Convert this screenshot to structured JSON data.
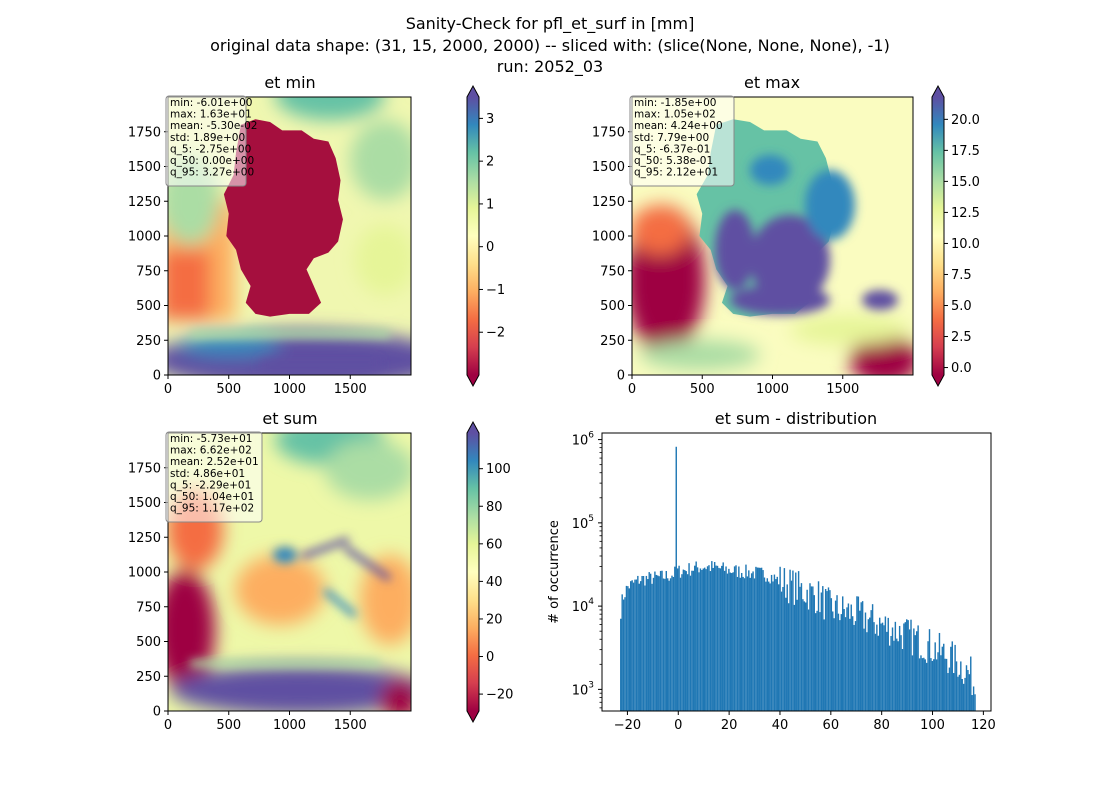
{
  "figure": {
    "title_lines": [
      "Sanity-Check for pfl_et_surf in [mm]",
      "original data shape: (31, 15, 2000, 2000) -- sliced with: (slice(None, None, None), -1)",
      "run: 2052_03"
    ]
  },
  "chart_data": [
    {
      "type": "heatmap",
      "title": "et min",
      "x_ticks": [
        "0",
        "500",
        "1000",
        "1500"
      ],
      "y_ticks": [
        "0",
        "250",
        "500",
        "750",
        "1000",
        "1250",
        "1500",
        "1750"
      ],
      "xlim": [
        0,
        2000
      ],
      "ylim": [
        0,
        2000
      ],
      "colormap": "Spectral",
      "colorbar": {
        "vmin": -3.0,
        "vmax": 3.5,
        "ticks": [
          "−2",
          "−1",
          "0",
          "1",
          "2",
          "3"
        ],
        "tick_values": [
          -2,
          -1,
          0,
          1,
          2,
          3
        ],
        "extend": "both"
      },
      "stats": [
        "min: -6.01e+00",
        "max: 1.63e+01",
        "mean: -5.30e-02",
        "std: 1.89e+00",
        "q_5: -2.75e+00",
        "q_50: 0.00e+00",
        "q_95: 3.27e+00"
      ]
    },
    {
      "type": "heatmap",
      "title": "et max",
      "x_ticks": [
        "0",
        "500",
        "1000",
        "1500"
      ],
      "y_ticks": [
        "0",
        "250",
        "500",
        "750",
        "1000",
        "1250",
        "1500",
        "1750"
      ],
      "xlim": [
        0,
        2000
      ],
      "ylim": [
        0,
        2000
      ],
      "colormap": "Spectral",
      "colorbar": {
        "vmin": -0.6,
        "vmax": 21.8,
        "ticks": [
          "0.0",
          "2.5",
          "5.0",
          "7.5",
          "10.0",
          "12.5",
          "15.0",
          "17.5",
          "20.0"
        ],
        "tick_values": [
          0,
          2.5,
          5,
          7.5,
          10,
          12.5,
          15,
          17.5,
          20
        ],
        "extend": "both"
      },
      "stats": [
        "min: -1.85e+00",
        "max: 1.05e+02",
        "mean: 4.24e+00",
        "std: 7.79e+00",
        "q_5: -6.37e-01",
        "q_50: 5.38e-01",
        "q_95: 2.12e+01"
      ]
    },
    {
      "type": "heatmap",
      "title": "et sum",
      "x_ticks": [
        "0",
        "500",
        "1000",
        "1500"
      ],
      "y_ticks": [
        "0",
        "250",
        "500",
        "750",
        "1000",
        "1250",
        "1500",
        "1750"
      ],
      "xlim": [
        0,
        2000
      ],
      "ylim": [
        0,
        2000
      ],
      "colormap": "Spectral",
      "colorbar": {
        "vmin": -29,
        "vmax": 119,
        "ticks": [
          "−20",
          "0",
          "20",
          "40",
          "60",
          "80",
          "100"
        ],
        "tick_values": [
          -20,
          0,
          20,
          40,
          60,
          80,
          100
        ],
        "extend": "both"
      },
      "stats": [
        "min: -5.73e+01",
        "max: 6.62e+02",
        "mean: 2.52e+01",
        "std: 4.86e+01",
        "q_5: -2.29e+01",
        "q_50: 1.04e+01",
        "q_95: 1.17e+02"
      ]
    },
    {
      "type": "bar",
      "title": "et sum - distribution",
      "ylabel": "# of occurrence",
      "xlabel": "",
      "xlim": [
        -30,
        123
      ],
      "ylim": [
        550,
        1200000
      ],
      "yscale": "log",
      "x_ticks": [
        "−20",
        "0",
        "20",
        "40",
        "60",
        "80",
        "100",
        "120"
      ],
      "x_tick_values": [
        -20,
        0,
        20,
        40,
        60,
        80,
        100,
        120
      ],
      "y_ticks": [
        {
          "base": "10",
          "exp": "3",
          "value": 1000
        },
        {
          "base": "10",
          "exp": "4",
          "value": 10000
        },
        {
          "base": "10",
          "exp": "5",
          "value": 100000
        },
        {
          "base": "10",
          "exp": "6",
          "value": 1000000
        }
      ],
      "bar_color": "#1f77b4",
      "bins": {
        "start": -22.9,
        "end": 117.0,
        "count": 250
      },
      "profile": [
        [
          -22.9,
          7500
        ],
        [
          -22,
          12000
        ],
        [
          -20,
          17000
        ],
        [
          -15,
          21000
        ],
        [
          -8,
          22000
        ],
        [
          -3,
          23500
        ],
        [
          0,
          26000
        ],
        [
          5,
          28000
        ],
        [
          10,
          30000
        ],
        [
          15,
          29000
        ],
        [
          20,
          27000
        ],
        [
          30,
          25000
        ],
        [
          35,
          24000
        ],
        [
          40,
          20000
        ],
        [
          50,
          15000
        ],
        [
          55,
          13000
        ],
        [
          60,
          9500
        ],
        [
          70,
          8000
        ],
        [
          80,
          6000
        ],
        [
          90,
          4500
        ],
        [
          100,
          3200
        ],
        [
          110,
          2100
        ],
        [
          115,
          1500
        ],
        [
          117,
          1000
        ]
      ],
      "spike": {
        "x": -0.8,
        "value": 820000
      }
    }
  ]
}
